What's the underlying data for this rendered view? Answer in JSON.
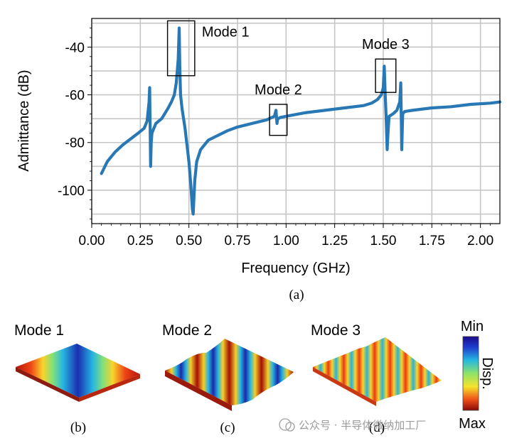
{
  "chart_data": {
    "type": "line",
    "xlabel": "Frequency (GHz)",
    "ylabel": "Admittance (dB)",
    "xlim": [
      0.0,
      2.1
    ],
    "ylim": [
      -114,
      -28
    ],
    "x_ticks": [
      "0.00",
      "0.25",
      "0.50",
      "0.75",
      "1.00",
      "1.25",
      "1.50",
      "1.75",
      "2.00"
    ],
    "x_tick_values": [
      0.0,
      0.25,
      0.5,
      0.75,
      1.0,
      1.25,
      1.5,
      1.75,
      2.0
    ],
    "y_ticks": [
      "-40",
      "-60",
      "-80",
      "-100"
    ],
    "y_tick_values": [
      -40,
      -60,
      -80,
      -100
    ],
    "grid": true,
    "series": [
      {
        "name": "Admittance",
        "color": "#2878b5",
        "x": [
          0.05,
          0.08,
          0.12,
          0.16,
          0.2,
          0.24,
          0.27,
          0.285,
          0.295,
          0.298,
          0.3,
          0.303,
          0.306,
          0.31,
          0.33,
          0.36,
          0.39,
          0.41,
          0.425,
          0.435,
          0.445,
          0.45,
          0.453,
          0.457,
          0.465,
          0.48,
          0.49,
          0.5,
          0.51,
          0.518,
          0.522,
          0.526,
          0.53,
          0.54,
          0.56,
          0.6,
          0.65,
          0.7,
          0.75,
          0.8,
          0.85,
          0.9,
          0.94,
          0.948,
          0.953,
          0.957,
          0.96,
          0.97,
          1.0,
          1.1,
          1.2,
          1.3,
          1.4,
          1.44,
          1.47,
          1.49,
          1.5,
          1.505,
          1.51,
          1.515,
          1.52,
          1.525,
          1.53,
          1.55,
          1.57,
          1.585,
          1.59,
          1.595,
          1.6,
          1.61,
          1.65,
          1.75,
          1.85,
          1.95,
          2.05,
          2.1
        ],
        "y": [
          -93,
          -88,
          -84,
          -81,
          -78.5,
          -76,
          -74,
          -71,
          -63,
          -57,
          -70,
          -90,
          -80,
          -76,
          -72,
          -70,
          -66,
          -63,
          -60,
          -55,
          -45,
          -32,
          -48,
          -60,
          -66,
          -74,
          -81,
          -88,
          -98,
          -108,
          -110,
          -103,
          -96,
          -88,
          -83,
          -79,
          -77,
          -75,
          -73.5,
          -72.5,
          -71.5,
          -70.5,
          -69,
          -66.5,
          -72,
          -70,
          -70,
          -69.5,
          -69,
          -67.5,
          -66.5,
          -65.5,
          -64.5,
          -63.5,
          -62,
          -60,
          -57,
          -48,
          -60,
          -70,
          -83,
          -75,
          -69,
          -68,
          -66.5,
          -63,
          -55,
          -83,
          -68,
          -67,
          -66.5,
          -65.5,
          -65,
          -64,
          -63.5,
          -63
        ]
      }
    ],
    "annotations": [
      {
        "label": "Mode 1",
        "x_range": [
          0.39,
          0.53
        ],
        "y_range": [
          -52,
          -29
        ]
      },
      {
        "label": "Mode 2",
        "x_range": [
          0.915,
          1.005
        ],
        "y_range": [
          -77,
          -64
        ]
      },
      {
        "label": "Mode 3",
        "x_range": [
          1.46,
          1.565
        ],
        "y_range": [
          -59,
          -45
        ]
      }
    ]
  },
  "caption_a": "(a)",
  "panels": [
    {
      "title": "Mode 1",
      "caption": "(b)"
    },
    {
      "title": "Mode 2",
      "caption": "(c)"
    },
    {
      "title": "Mode 3",
      "caption": "(d)"
    }
  ],
  "colorbar": {
    "top": "Min",
    "bottom": "Max",
    "side": "Disp."
  },
  "watermark": "公众号 · 半导体微纳加工厂"
}
